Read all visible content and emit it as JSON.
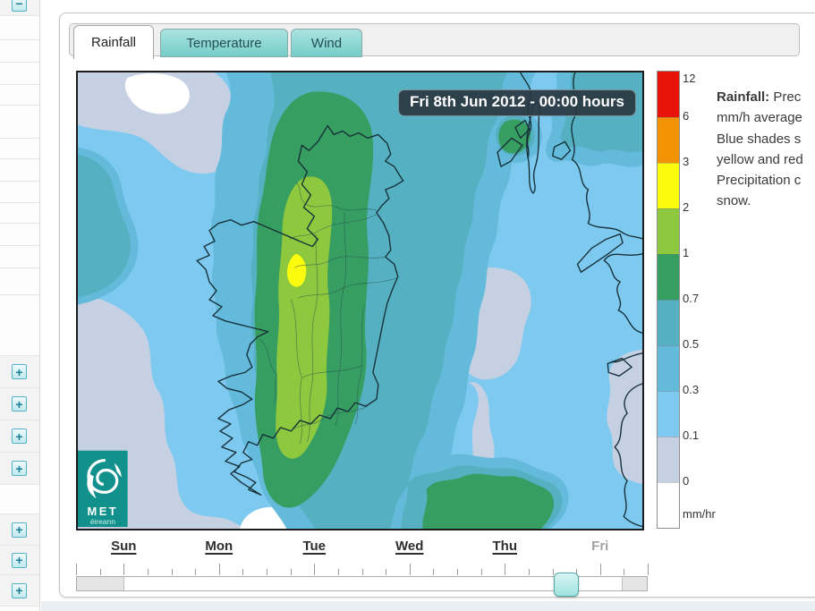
{
  "tabs": {
    "items": [
      {
        "label": "Rainfall",
        "active": true
      },
      {
        "label": "Temperature",
        "active": false
      },
      {
        "label": "Wind",
        "active": false
      }
    ]
  },
  "map": {
    "datetime_label": "Fri 8th Jun 2012 - 00:00 hours",
    "logo": {
      "line1": "MET",
      "line2": "éireann"
    }
  },
  "legend": {
    "unit": "mm/hr",
    "levels": [
      {
        "value": "12",
        "color": "#e8130a"
      },
      {
        "value": "6",
        "color": "#f29204"
      },
      {
        "value": "3",
        "color": "#fbfb0f"
      },
      {
        "value": "2",
        "color": "#8ec83e"
      },
      {
        "value": "1",
        "color": "#369e60"
      },
      {
        "value": "0.7",
        "color": "#55b1c1"
      },
      {
        "value": "0.5",
        "color": "#63badb"
      },
      {
        "value": "0.3",
        "color": "#7ec9f0"
      },
      {
        "value": "0.1",
        "color": "#c6d0e3"
      },
      {
        "value": "0",
        "color": "#ffffff"
      }
    ]
  },
  "description": {
    "lines": [
      {
        "bold": "Rainfall:",
        "text": " Prec"
      },
      {
        "text": "mm/h average"
      },
      {
        "text": "Blue shades s"
      },
      {
        "text": "yellow and red"
      },
      {
        "text": "Precipitation c"
      },
      {
        "text": "snow."
      }
    ]
  },
  "timeline": {
    "days": [
      {
        "label": "Sun",
        "muted": false
      },
      {
        "label": "Mon",
        "muted": false
      },
      {
        "label": "Tue",
        "muted": false
      },
      {
        "label": "Wed",
        "muted": false
      },
      {
        "label": "Thu",
        "muted": false
      },
      {
        "label": "Fri",
        "muted": true
      }
    ]
  },
  "sidebar": {
    "rows": [
      {
        "h": 18,
        "icon": "collapse-minus-icon",
        "glyph": "−",
        "cut": true
      },
      {
        "h": 27
      },
      {
        "h": 25
      },
      {
        "h": 25
      },
      {
        "h": 23
      },
      {
        "h": 37
      },
      {
        "h": 23
      },
      {
        "h": 25
      },
      {
        "h": 24
      },
      {
        "h": 23
      },
      {
        "h": 25
      },
      {
        "h": 25
      },
      {
        "h": 30
      },
      {
        "h": 68
      },
      {
        "h": 36,
        "icon": "expand-plus-icon",
        "glyph": "+"
      },
      {
        "h": 36,
        "icon": "expand-plus-icon",
        "glyph": "+"
      },
      {
        "h": 36,
        "icon": "expand-plus-icon",
        "glyph": "+"
      },
      {
        "h": 36,
        "icon": "expand-plus-icon",
        "glyph": "+"
      },
      {
        "h": 33
      },
      {
        "h": 35,
        "icon": "expand-plus-icon",
        "glyph": "+"
      },
      {
        "h": 33,
        "icon": "expand-plus-icon",
        "glyph": "+"
      },
      {
        "h": 35,
        "icon": "expand-plus-icon",
        "glyph": "+"
      }
    ]
  }
}
